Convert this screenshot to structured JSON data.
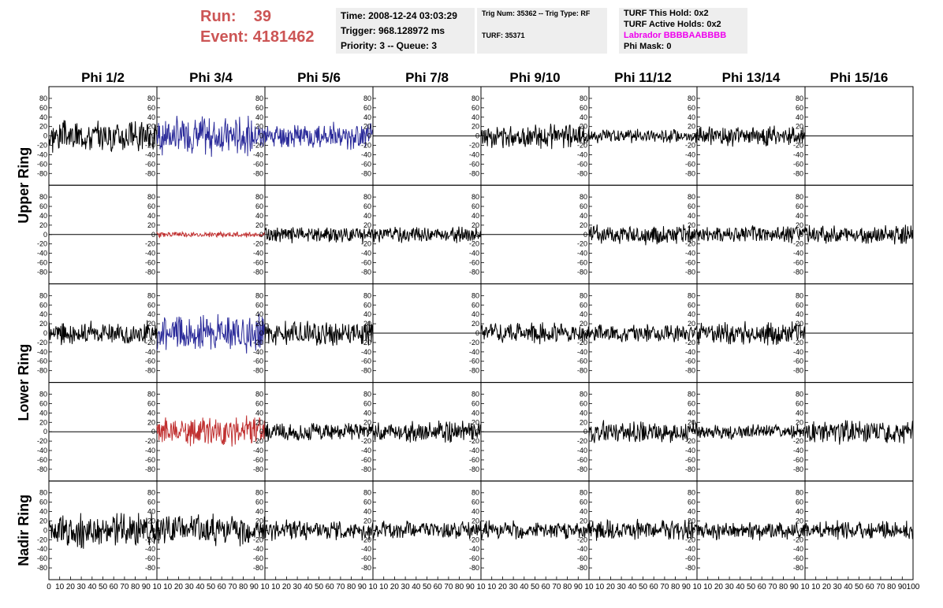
{
  "header": {
    "run_label": "Run:",
    "run_value": "39",
    "event_label": "Event:",
    "event_value": "4181462",
    "time": "Time: 2008-12-24 03:03:29",
    "trigger": "Trigger: 968.128972 ms",
    "priority": "Priority: 3 -- Queue: 3",
    "trig_num": "Trig Num: 35362 -- Trig Type: RF",
    "turf": "TURF: 35371",
    "turf_this_hold": "TURF This Hold: 0x2",
    "turf_active_holds": "TURF Active Holds: 0x2",
    "labrador": "Labrador BBBBAABBBB",
    "phi_mask": "Phi Mask: 0"
  },
  "colors": {
    "run_text": "#cc5555",
    "labrador_text": "#ee00ee",
    "trace_default": "#000000",
    "trace_blue": "#2b2b9a",
    "trace_red": "#c03030",
    "info_background": "#eeeeee"
  },
  "chart_data": {
    "type": "line",
    "title": "",
    "columns": [
      "Phi 1/2",
      "Phi 3/4",
      "Phi 5/6",
      "Phi 7/8",
      "Phi 9/10",
      "Phi 11/12",
      "Phi 13/14",
      "Phi 15/16"
    ],
    "rows": [
      "Upper Ring",
      "Lower Ring",
      "Nadir Ring"
    ],
    "xlim": [
      0,
      100
    ],
    "ylim": [
      -95,
      95
    ],
    "y_ticks": [
      -80,
      -60,
      -40,
      -20,
      0,
      20,
      40,
      60,
      80
    ],
    "x_ticks": [
      0,
      10,
      20,
      30,
      40,
      50,
      60,
      70,
      80,
      90,
      100
    ],
    "x_tick_labels_first_panel": [
      "0",
      "10",
      "20",
      "30",
      "40",
      "50",
      "60",
      "70",
      "80",
      "90",
      "10"
    ],
    "x_tick_labels_other_panels": [
      "10",
      "20",
      "30",
      "40",
      "50",
      "60",
      "70",
      "80",
      "90",
      "10"
    ],
    "x_tick_labels_last_panel": [
      "10",
      "20",
      "30",
      "40",
      "50",
      "60",
      "70",
      "80",
      "90",
      "100"
    ],
    "grid": false,
    "legend": "none",
    "panels": [
      [
        {
          "color": "black",
          "amp": 28,
          "seed": 3
        },
        {
          "color": "blue",
          "amp": 34,
          "seed": 7
        },
        {
          "color": "blue",
          "amp": 22,
          "seed": 11
        },
        {
          "color": "flat",
          "amp": 0,
          "seed": 0
        },
        {
          "color": "black",
          "amp": 20,
          "seed": 13
        },
        {
          "color": "black",
          "amp": 12,
          "seed": 17
        },
        {
          "color": "black",
          "amp": 18,
          "seed": 19
        },
        {
          "color": "flat",
          "amp": 0,
          "seed": 0
        }
      ],
      [
        {
          "color": "flat",
          "amp": 0,
          "seed": 0
        },
        {
          "color": "red",
          "amp": 5,
          "seed": 23
        },
        {
          "color": "black",
          "amp": 14,
          "seed": 29
        },
        {
          "color": "black",
          "amp": 14,
          "seed": 31
        },
        {
          "color": "flat",
          "amp": 0,
          "seed": 0
        },
        {
          "color": "black",
          "amp": 18,
          "seed": 37
        },
        {
          "color": "black",
          "amp": 16,
          "seed": 41
        },
        {
          "color": "black",
          "amp": 16,
          "seed": 43
        }
      ],
      [
        {
          "color": "black",
          "amp": 20,
          "seed": 47
        },
        {
          "color": "blue",
          "amp": 32,
          "seed": 53
        },
        {
          "color": "black",
          "amp": 22,
          "seed": 59
        },
        {
          "color": "flat",
          "amp": 0,
          "seed": 0
        },
        {
          "color": "black",
          "amp": 18,
          "seed": 61
        },
        {
          "color": "black",
          "amp": 16,
          "seed": 67
        },
        {
          "color": "black",
          "amp": 20,
          "seed": 71
        },
        {
          "color": "flat",
          "amp": 0,
          "seed": 0
        }
      ],
      [
        {
          "color": "flat",
          "amp": 0,
          "seed": 0
        },
        {
          "color": "red",
          "amp": 26,
          "seed": 73
        },
        {
          "color": "black",
          "amp": 16,
          "seed": 79
        },
        {
          "color": "black",
          "amp": 18,
          "seed": 83
        },
        {
          "color": "flat",
          "amp": 0,
          "seed": 0
        },
        {
          "color": "black",
          "amp": 18,
          "seed": 89
        },
        {
          "color": "black",
          "amp": 14,
          "seed": 97
        },
        {
          "color": "black",
          "amp": 22,
          "seed": 101
        }
      ],
      [
        {
          "color": "black",
          "amp": 30,
          "seed": 103
        },
        {
          "color": "black",
          "amp": 26,
          "seed": 107
        },
        {
          "color": "black",
          "amp": 18,
          "seed": 109
        },
        {
          "color": "black",
          "amp": 16,
          "seed": 113
        },
        {
          "color": "black",
          "amp": 16,
          "seed": 127
        },
        {
          "color": "black",
          "amp": 18,
          "seed": 131
        },
        {
          "color": "black",
          "amp": 16,
          "seed": 137
        },
        {
          "color": "black",
          "amp": 16,
          "seed": 139
        }
      ]
    ]
  }
}
